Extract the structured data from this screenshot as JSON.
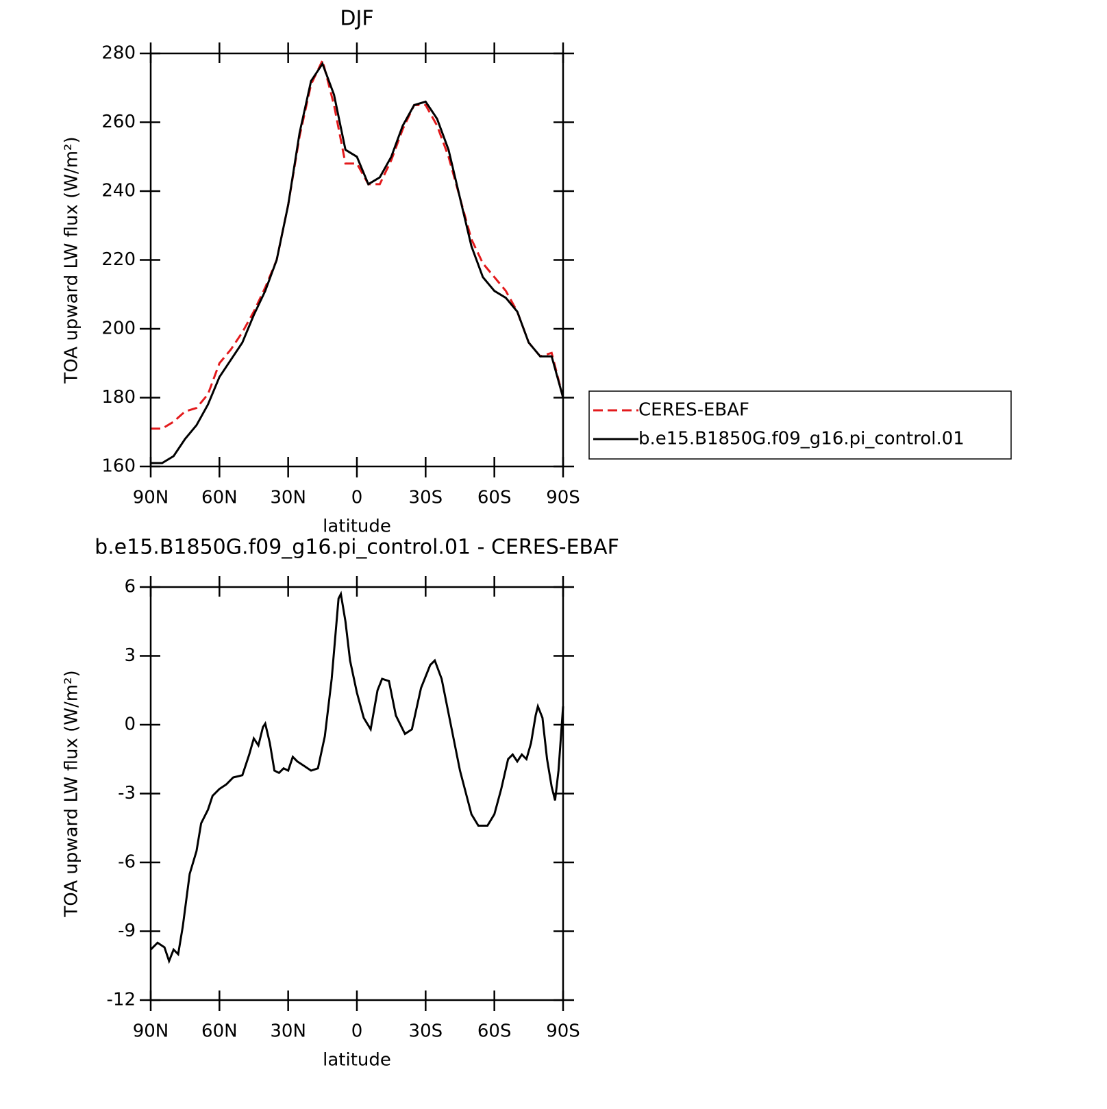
{
  "chart_data": [
    {
      "type": "line",
      "title": "DJF",
      "y_label": "TOA upward LW flux (W/m²)",
      "x_label": "latitude",
      "x": [
        90,
        85,
        80,
        75,
        70,
        65,
        60,
        55,
        50,
        45,
        40,
        35,
        30,
        25,
        20,
        15,
        10,
        5,
        0,
        -5,
        -10,
        -15,
        -20,
        -25,
        -30,
        -35,
        -40,
        -45,
        -50,
        -55,
        -60,
        -65,
        -70,
        -75,
        -80,
        -85,
        -90
      ],
      "series": [
        {
          "name": "CERES-EBAF",
          "color": "#e31a1c",
          "dash": true,
          "values": [
            171,
            171,
            173,
            176,
            177,
            181,
            190,
            194,
            199,
            205,
            212,
            220,
            236,
            256,
            271,
            278,
            265,
            248,
            248,
            242,
            242,
            249,
            258,
            265,
            265,
            259,
            250,
            238,
            226,
            219,
            215,
            211,
            205,
            196,
            192,
            193,
            180
          ]
        },
        {
          "name": "b.e15.B1850G.f09_g16.pi_control.01",
          "color": "#000000",
          "dash": false,
          "values": [
            161,
            161,
            163,
            168,
            172,
            178,
            186,
            191,
            196,
            204,
            211,
            220,
            236,
            257,
            272,
            277,
            268,
            252,
            250,
            242,
            244,
            250,
            259,
            265,
            266,
            261,
            252,
            238,
            224,
            215,
            211,
            209,
            205,
            196,
            192,
            192,
            180
          ]
        }
      ],
      "xlim": [
        90,
        -90
      ],
      "xticks": [
        {
          "value": 90,
          "label": "90N"
        },
        {
          "value": 60,
          "label": "60N"
        },
        {
          "value": 30,
          "label": "30N"
        },
        0,
        {
          "value": -30,
          "label": "30S"
        },
        {
          "value": -60,
          "label": "60S"
        },
        {
          "value": -90,
          "label": "90S"
        }
      ],
      "ylim": [
        160,
        280
      ],
      "yticks": [
        160,
        180,
        200,
        220,
        240,
        260,
        280
      ],
      "legend": "right"
    },
    {
      "type": "line",
      "title": "b.e15.B1850G.f09_g16.pi_control.01 - CERES-EBAF",
      "y_label": "TOA upward LW flux (W/m²)",
      "x_label": "latitude",
      "x": [
        90,
        87,
        84,
        82,
        80,
        78,
        76,
        73,
        70,
        68,
        65,
        63,
        60,
        57,
        54,
        50,
        47,
        45,
        43,
        41,
        40,
        38,
        36,
        34,
        32,
        30,
        28,
        26,
        23,
        20,
        17,
        14,
        11,
        8,
        7,
        5,
        3,
        0,
        -3,
        -6,
        -9,
        -11,
        -14,
        -17,
        -21,
        -24,
        -28,
        -32,
        -34,
        -37,
        -41,
        -45,
        -50,
        -53,
        -57,
        -60,
        -63,
        -66,
        -68,
        -70,
        -72,
        -74,
        -76,
        -78,
        -79,
        -81,
        -83,
        -85,
        -86.5,
        -88,
        -90
      ],
      "series": [
        {
          "name": "b.e15.B1850G.f09_g16.pi_control.01 - CERES-EBAF",
          "color": "#000000",
          "dash": false,
          "values": [
            -9.8,
            -9.5,
            -9.7,
            -10.3,
            -9.8,
            -10.0,
            -8.8,
            -6.5,
            -5.5,
            -4.3,
            -3.7,
            -3.1,
            -2.8,
            -2.6,
            -2.3,
            -2.2,
            -1.3,
            -0.6,
            -0.9,
            -0.1,
            0.05,
            -0.8,
            -2.0,
            -2.1,
            -1.9,
            -2.0,
            -1.4,
            -1.6,
            -1.8,
            -2.0,
            -1.9,
            -0.5,
            2.0,
            5.5,
            5.7,
            4.5,
            2.8,
            1.4,
            0.3,
            -0.2,
            1.5,
            2.0,
            1.9,
            0.4,
            -0.4,
            -0.2,
            1.6,
            2.6,
            2.8,
            2.0,
            0,
            -2,
            -3.9,
            -4.4,
            -4.4,
            -3.9,
            -2.8,
            -1.5,
            -1.3,
            -1.6,
            -1.3,
            -1.5,
            -0.8,
            0.4,
            0.8,
            0.3,
            -1.5,
            -2.7,
            -3.3,
            -2.0,
            0.8
          ]
        }
      ],
      "xlim": [
        90,
        -90
      ],
      "xticks": [
        {
          "value": 90,
          "label": "90N"
        },
        {
          "value": 60,
          "label": "60N"
        },
        {
          "value": 30,
          "label": "30N"
        },
        0,
        {
          "value": -30,
          "label": "30S"
        },
        {
          "value": -60,
          "label": "60S"
        },
        {
          "value": -90,
          "label": "90S"
        }
      ],
      "ylim": [
        -12,
        6
      ],
      "yticks": [
        -12,
        -9,
        -6,
        -3,
        0,
        3,
        6
      ]
    }
  ]
}
